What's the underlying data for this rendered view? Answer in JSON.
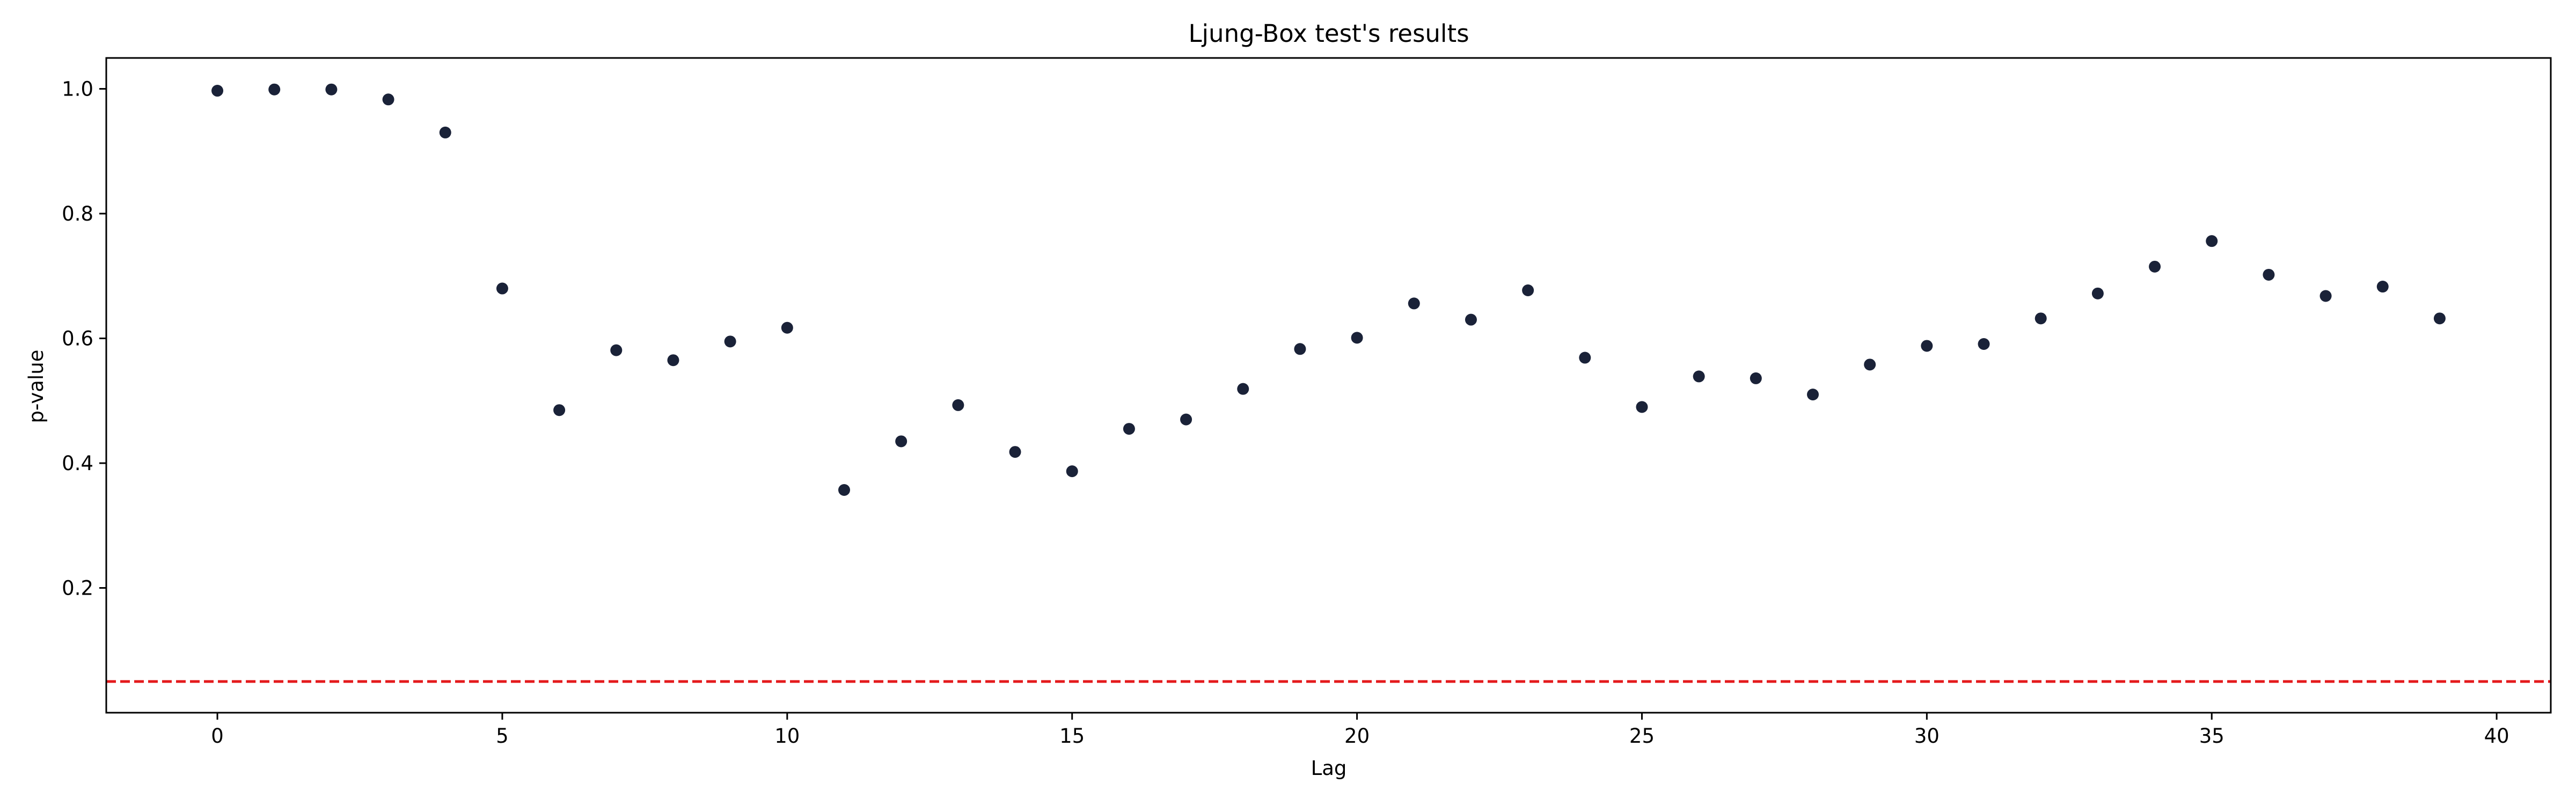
{
  "chart_data": {
    "type": "scatter",
    "title": "Ljung-Box test's results",
    "xlabel": "Lag",
    "ylabel": "p-value",
    "xlim": [
      -1.95,
      40.95
    ],
    "ylim": [
      0.0,
      1.0495
    ],
    "x_ticks": [
      0,
      5,
      10,
      15,
      20,
      25,
      30,
      35,
      40
    ],
    "y_ticks": [
      0.2,
      0.4,
      0.6,
      0.8,
      1.0
    ],
    "grid": false,
    "legend": "none",
    "marker_color": "#1a2238",
    "series": [
      {
        "x": [
          0,
          1,
          2,
          3,
          4,
          5,
          6,
          7,
          8,
          9,
          10,
          11,
          12,
          13,
          14,
          15,
          16,
          17,
          18,
          19,
          20,
          21,
          22,
          23,
          24,
          25,
          26,
          27,
          28,
          29,
          30,
          31,
          32,
          33,
          34,
          35,
          36,
          37,
          38,
          39
        ],
        "y": [
          0.997,
          0.999,
          0.999,
          0.983,
          0.93,
          0.68,
          0.485,
          0.581,
          0.565,
          0.595,
          0.617,
          0.357,
          0.435,
          0.493,
          0.418,
          0.387,
          0.455,
          0.47,
          0.519,
          0.583,
          0.601,
          0.656,
          0.63,
          0.677,
          0.569,
          0.49,
          0.539,
          0.536,
          0.51,
          0.558,
          0.588,
          0.591,
          0.632,
          0.672,
          0.715,
          0.756,
          0.702,
          0.668,
          0.683,
          0.632
        ]
      }
    ],
    "reference_line": {
      "y": 0.05,
      "color": "#e41a1c",
      "style": "dashed"
    }
  }
}
